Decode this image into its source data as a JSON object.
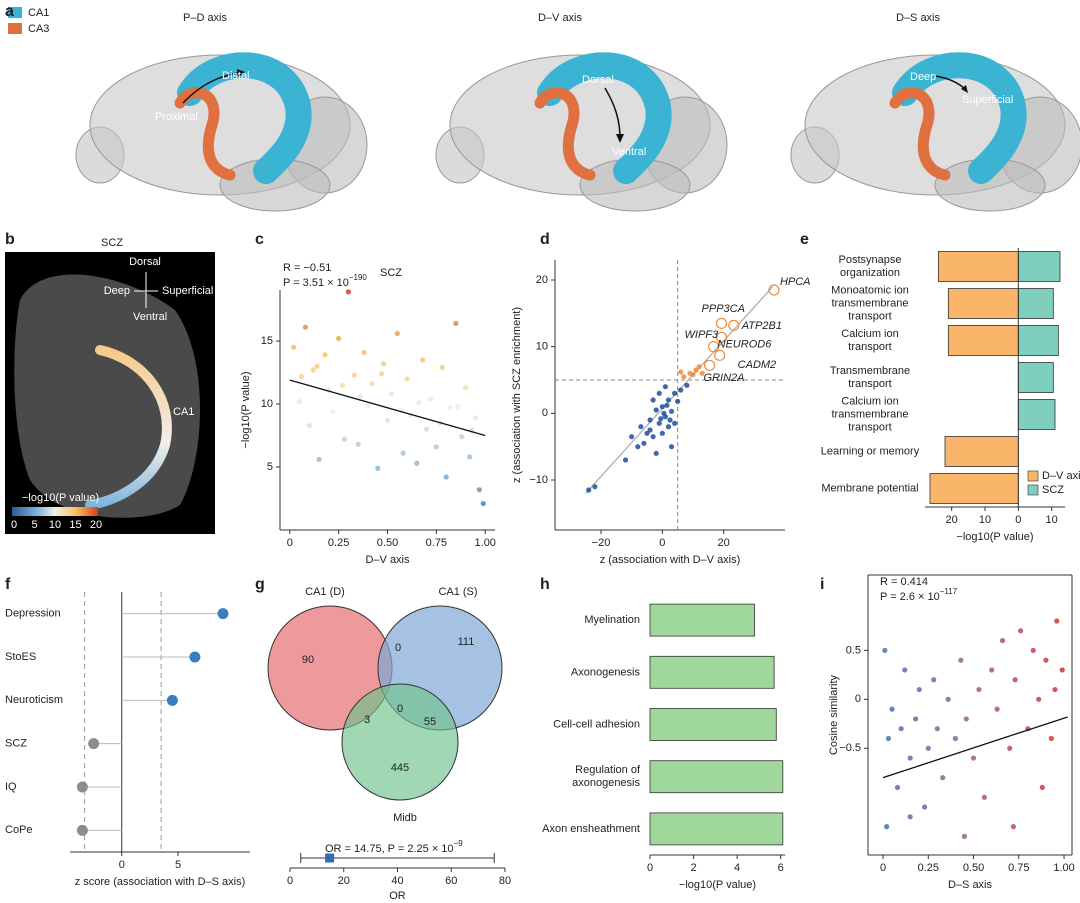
{
  "panel_labels": [
    "a",
    "b",
    "c",
    "d",
    "e",
    "f",
    "g",
    "h",
    "i"
  ],
  "panel_a": {
    "legend": [
      {
        "name": "CA1",
        "color": "#3bb3d3"
      },
      {
        "name": "CA3",
        "color": "#e0703f"
      }
    ],
    "brains": [
      {
        "title": "P–D axis",
        "labels": [
          "Proximal",
          "Distal"
        ]
      },
      {
        "title": "D–V axis",
        "labels": [
          "Dorsal",
          "Ventral"
        ]
      },
      {
        "title": "D–S axis",
        "labels": [
          "Deep",
          "Superficial"
        ]
      }
    ]
  },
  "panel_b": {
    "title": "SCZ",
    "compass": {
      "up": "Dorsal",
      "down": "Ventral",
      "left": "Deep",
      "right": "Superficial"
    },
    "region": "CA1",
    "colorbar": {
      "label": "−log10(P value)",
      "lim": [
        0,
        20
      ],
      "ticks": [
        0,
        5,
        10,
        15,
        20
      ]
    }
  },
  "venn": {
    "sets": [
      "CA1 (D)",
      "CA1 (S)",
      "Midb"
    ],
    "counts": [
      90,
      0,
      111,
      3,
      0,
      55,
      445
    ]
  },
  "chart_data": [
    {
      "type": "scatter",
      "title": "SCZ",
      "stat": "R = −0.51",
      "p": "P = 3.51 × 10",
      "p_exp": "−190",
      "xlabel": "D–V axis",
      "ylabel": "−log10(P value)",
      "x": [
        0.02,
        0.05,
        0.08,
        0.1,
        0.12,
        0.15,
        0.18,
        0.2,
        0.22,
        0.25,
        0.28,
        0.3,
        0.33,
        0.35,
        0.38,
        0.4,
        0.42,
        0.45,
        0.48,
        0.5,
        0.52,
        0.55,
        0.58,
        0.6,
        0.62,
        0.65,
        0.68,
        0.7,
        0.72,
        0.75,
        0.78,
        0.8,
        0.82,
        0.85,
        0.88,
        0.9,
        0.92,
        0.95,
        0.97,
        0.99,
        0.06,
        0.14,
        0.27,
        0.36,
        0.47,
        0.57,
        0.66,
        0.77,
        0.86,
        0.93
      ],
      "y": [
        14.5,
        10.2,
        16.1,
        8.3,
        12.7,
        5.6,
        13.9,
        11.1,
        9.4,
        15.2,
        7.2,
        18.9,
        12.3,
        6.8,
        14.1,
        9.9,
        11.6,
        4.9,
        13.2,
        8.7,
        10.8,
        15.6,
        6.1,
        12.0,
        9.1,
        5.3,
        13.5,
        8.0,
        10.4,
        6.6,
        12.9,
        4.2,
        9.7,
        16.4,
        7.4,
        11.3,
        5.8,
        8.9,
        3.2,
        2.1,
        12.2,
        13.0,
        11.5,
        10.6,
        12.4,
        9.5,
        10.1,
        8.5,
        9.8,
        7.9
      ],
      "xlim": [
        -0.05,
        1.05
      ],
      "ylim": [
        0,
        19.05
      ],
      "xticks": [
        0,
        0.25,
        {
          "value": 0.5,
          "label": "0.50"
        },
        0.75,
        {
          "value": 1,
          "label": "1.00"
        }
      ],
      "yticks": [
        5,
        10,
        15
      ],
      "fit": {
        "x": [
          0,
          1
        ],
        "y": [
          11.9,
          7.5
        ]
      },
      "color_by": "y",
      "colormap": [
        "#2c5aa0",
        "#7db6dc",
        "#f2eeea",
        "#f7c15c",
        "#d63a1e"
      ]
    },
    {
      "type": "scatter",
      "xlabel": "z (association with D–V axis)",
      "ylabel": "z (association with SCZ enrichment)",
      "x": [
        -24,
        -22,
        -12,
        -8,
        -6,
        -5,
        -4,
        -3,
        -2,
        -1,
        0,
        1,
        2,
        3,
        4,
        5,
        -3,
        0,
        2,
        6,
        -1,
        8,
        7,
        9,
        10,
        11,
        12,
        13,
        6,
        -7,
        -10,
        3,
        1,
        -2,
        4,
        -4,
        0.5,
        1.5,
        -0.5,
        2.5
      ],
      "y": [
        -11.5,
        -11,
        -7,
        -5,
        -4.5,
        -3,
        -1,
        -3.5,
        0.5,
        -1.5,
        1,
        -0.5,
        2,
        0.3,
        3,
        1.8,
        2,
        -3,
        -2,
        3.5,
        3,
        4.2,
        5.5,
        6,
        5.8,
        6.5,
        7,
        6,
        6.2,
        -2,
        -3.5,
        -5,
        4,
        -6,
        -1.5,
        -2.5,
        0,
        1.2,
        -0.8,
        -1
      ],
      "xlim": [
        -35,
        40
      ],
      "ylim": [
        -17.5,
        23
      ],
      "xticks": [
        {
          "value": -20,
          "label": "−20"
        },
        0,
        20
      ],
      "yticks": [
        {
          "value": -10,
          "label": "−10"
        },
        0,
        10,
        20
      ],
      "thresholds": {
        "x": 5,
        "y": 5
      },
      "color": "#1f4e9c",
      "highlight_color": "#f08a3c",
      "fit": {
        "x": [
          -25,
          36
        ],
        "y": [
          -12,
          19
        ]
      },
      "genes": {
        "names": [
          "HPCA",
          "PPP3CA",
          "ATP2B1",
          "WIPF3",
          "NEUROD6",
          "CADM2",
          "GRIN2A"
        ],
        "x": [
          36.4,
          19.3,
          23.3,
          19.3,
          16.7,
          18.7,
          15.4
        ],
        "y": [
          18.5,
          13.5,
          13.2,
          11.4,
          10,
          8.7,
          7.2
        ]
      }
    },
    {
      "type": "diverging_bar",
      "categories": [
        [
          "Postsynapse",
          "organization"
        ],
        [
          "Monoatomic ion",
          "transmembrane",
          "transport"
        ],
        [
          "Calcium ion",
          "transport"
        ],
        [
          "Transmembrane",
          "transport"
        ],
        [
          "Calcium ion",
          "transmembrane",
          "transport"
        ],
        [
          "Learning or memory"
        ],
        [
          "Membrane potential"
        ]
      ],
      "series": [
        {
          "name": "D–V axis",
          "color": "#f9b66a",
          "values": [
            -24,
            -21,
            -21,
            null,
            null,
            -22,
            -26.5
          ]
        },
        {
          "name": "SCZ",
          "color": "#7fcfbf",
          "values": [
            12.5,
            10.5,
            12,
            10.5,
            11,
            null,
            null
          ]
        }
      ],
      "xlim": [
        -28,
        14
      ],
      "xticks": [
        {
          "value": -20,
          "label": "20"
        },
        {
          "value": -10,
          "label": "10"
        },
        0,
        10
      ],
      "xlabel": "−log10(P value)",
      "legend": "lower right"
    },
    {
      "type": "lollipop",
      "categories": [
        "Depression",
        "StoES",
        "Neuroticism",
        "SCZ",
        "IQ",
        "CoPe"
      ],
      "values": [
        9,
        6.5,
        4.5,
        -2.5,
        -3.5,
        -3.5
      ],
      "colors": [
        "#3a7ebf",
        "#3a7ebf",
        "#3a7ebf",
        "#8c8c8c",
        "#8c8c8c",
        "#8c8c8c"
      ],
      "thresholds": [
        -3.3,
        3.5
      ],
      "xlim": [
        -4.6,
        11.4
      ],
      "xticks": [
        0,
        5
      ],
      "xlabel": "z score (association with D–S axis)"
    },
    {
      "type": "forest",
      "label": "OR = 14.75, P = 2.25 × 10",
      "label_exp": "−9",
      "value": 14.75,
      "ci": [
        4,
        76
      ],
      "color": "#2f6db3",
      "xlim": [
        0,
        80
      ],
      "xticks": [
        0,
        20,
        40,
        60,
        80
      ],
      "xlabel": "OR"
    },
    {
      "type": "barh",
      "categories": [
        [
          "Myelination"
        ],
        [
          "Axonogenesis"
        ],
        [
          "Cell-cell adhesion"
        ],
        [
          "Regulation of",
          "axonogenesis"
        ],
        [
          "Axon ensheathment"
        ]
      ],
      "values": [
        4.8,
        5.7,
        5.8,
        6.1,
        6.1
      ],
      "color": "#9fd89a",
      "xlim": [
        0,
        6.2
      ],
      "xticks": [
        0,
        2,
        4,
        6
      ],
      "xlabel": "−log10(P value)"
    },
    {
      "type": "scatter",
      "stat": "R = 0.414",
      "p": "P = 2.6 × 10",
      "p_exp": "−117",
      "xlabel": "D–S axis",
      "ylabel": "Cosine similarity",
      "x": [
        0.01,
        0.03,
        0.05,
        0.08,
        0.1,
        0.12,
        0.15,
        0.18,
        0.2,
        0.23,
        0.25,
        0.28,
        0.3,
        0.33,
        0.36,
        0.4,
        0.43,
        0.46,
        0.5,
        0.53,
        0.56,
        0.6,
        0.63,
        0.66,
        0.7,
        0.73,
        0.76,
        0.8,
        0.83,
        0.86,
        0.9,
        0.93,
        0.96,
        0.99,
        0.02,
        0.15,
        0.45,
        0.72,
        0.88,
        0.95
      ],
      "y": [
        0.5,
        -0.4,
        -0.1,
        -0.9,
        -0.3,
        0.3,
        -0.6,
        -0.2,
        0.1,
        -1.1,
        -0.5,
        0.2,
        -0.3,
        -0.8,
        0.0,
        -0.4,
        0.4,
        -0.2,
        -0.6,
        0.1,
        -1.0,
        0.3,
        -0.1,
        0.6,
        -0.5,
        0.2,
        0.7,
        -0.3,
        0.5,
        0.0,
        0.4,
        -0.4,
        0.8,
        0.3,
        -1.3,
        -1.2,
        -1.4,
        -1.3,
        -0.9,
        0.1
      ],
      "xlim": [
        -0.083,
        1.044
      ],
      "ylim": [
        -1.59,
        1.27
      ],
      "xticks": [
        0,
        0.25,
        {
          "value": 0.5,
          "label": "0.50"
        },
        0.75,
        {
          "value": 1,
          "label": "1.00"
        }
      ],
      "yticks": [
        {
          "value": -0.5,
          "label": "−0.5"
        },
        0,
        0.5
      ],
      "fit": {
        "x": [
          0,
          1.02
        ],
        "y": [
          -0.8,
          -0.18
        ]
      },
      "color_by": "x",
      "colormap": [
        "#3a75b5",
        "#9a6090",
        "#d7302a"
      ],
      "box": true
    }
  ]
}
